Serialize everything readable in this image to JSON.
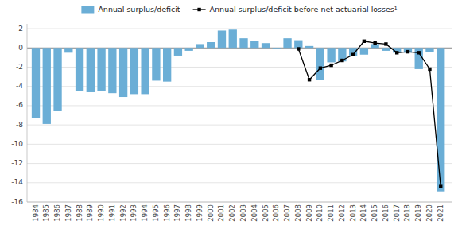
{
  "chart_data": {
    "type": "bar",
    "x": [
      1984,
      1985,
      1986,
      1987,
      1988,
      1989,
      1990,
      1991,
      1992,
      1993,
      1994,
      1995,
      1996,
      1997,
      1998,
      1999,
      2000,
      2001,
      2002,
      2003,
      2004,
      2005,
      2006,
      2007,
      2008,
      2009,
      2010,
      2011,
      2012,
      2013,
      2014,
      2015,
      2016,
      2017,
      2018,
      2019,
      2020,
      2021
    ],
    "series": [
      {
        "name": "Annual surplus/deficit",
        "type": "bar",
        "color": "#6baed6",
        "values": [
          -7.3,
          -7.9,
          -6.5,
          -0.5,
          -4.5,
          -4.6,
          -4.5,
          -4.7,
          -5.1,
          -4.8,
          -4.8,
          -3.4,
          -3.5,
          -0.8,
          -0.3,
          0.4,
          0.6,
          1.8,
          1.9,
          1.0,
          0.7,
          0.5,
          -0.1,
          1.0,
          0.8,
          0.2,
          -3.3,
          -1.5,
          -1.4,
          -0.8,
          -0.7,
          0.4,
          -0.3,
          -0.5,
          -0.5,
          -2.2,
          -0.4,
          -14.9
        ]
      },
      {
        "name": "Annual surplus/deficit before net actuarial losses¹",
        "type": "line",
        "color": "#000000",
        "marker": "square",
        "values": [
          null,
          null,
          null,
          null,
          null,
          null,
          null,
          null,
          null,
          null,
          null,
          null,
          null,
          null,
          null,
          null,
          null,
          null,
          null,
          null,
          null,
          null,
          null,
          null,
          -0.1,
          -3.3,
          -2.1,
          -1.8,
          -1.3,
          -0.7,
          0.7,
          0.5,
          0.4,
          -0.5,
          -0.4,
          -0.5,
          -2.2,
          -14.4
        ]
      }
    ],
    "xlim": [
      1983.2,
      2022.0
    ],
    "xticks": [
      1984,
      1985,
      1986,
      1987,
      1988,
      1989,
      1990,
      1991,
      1992,
      1993,
      1994,
      1995,
      1996,
      1997,
      1998,
      1999,
      2000,
      2001,
      2002,
      2003,
      2004,
      2005,
      2006,
      2007,
      2008,
      2009,
      2010,
      2011,
      2012,
      2013,
      2014,
      2015,
      2016,
      2017,
      2018,
      2019,
      2020,
      2021
    ],
    "ylim": [
      -16,
      2.5
    ],
    "yticks": [
      -16,
      -14,
      -12,
      -10,
      -8,
      -6,
      -4,
      -2,
      0,
      2
    ],
    "grid": true,
    "legend": "top"
  }
}
